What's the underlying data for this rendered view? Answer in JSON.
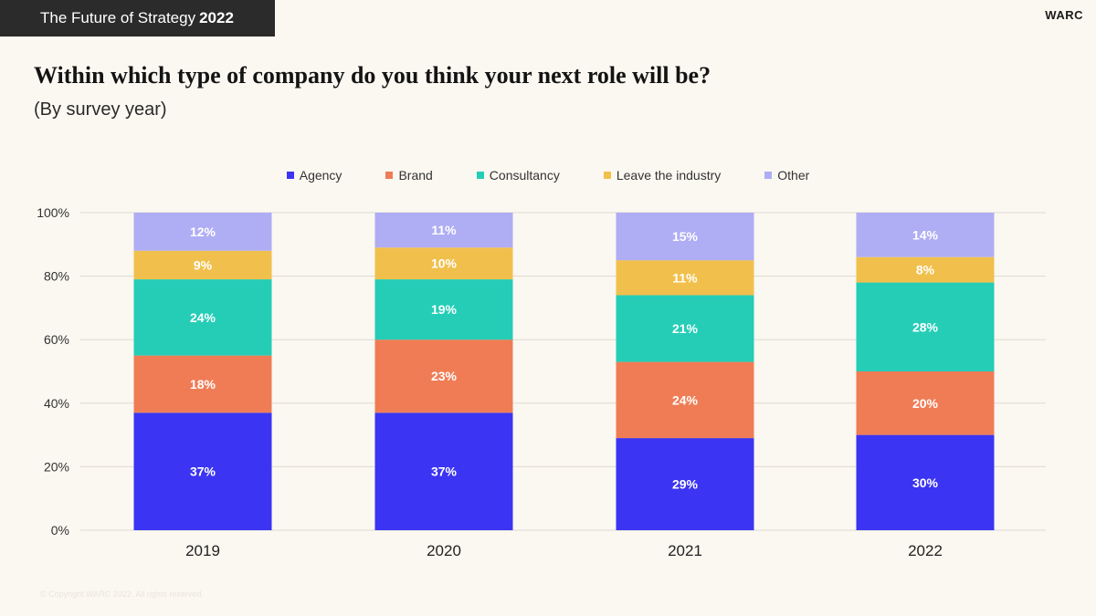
{
  "header": {
    "title": "The Future of Strategy",
    "year": "2022",
    "brand": "WARC"
  },
  "title": "Within which type of company do you think your next role will be?",
  "subtitle": "(By survey year)",
  "footnote": "© Copyright WARC 2022. All rights reserved.",
  "colors": {
    "Agency": "#3b34f2",
    "Brand": "#f07c55",
    "Consultancy": "#25cdb7",
    "Leave the industry": "#f1c04c",
    "Other": "#afadf3"
  },
  "chart_data": {
    "type": "bar",
    "stacked": true,
    "categories": [
      "2019",
      "2020",
      "2021",
      "2022"
    ],
    "series": [
      {
        "name": "Agency",
        "values": [
          37,
          37,
          29,
          30
        ],
        "labels": [
          "37%",
          "37%",
          "29%",
          "30%"
        ]
      },
      {
        "name": "Brand",
        "values": [
          18,
          23,
          24,
          20
        ],
        "labels": [
          "18%",
          "23%",
          "24%",
          "20%"
        ]
      },
      {
        "name": "Consultancy",
        "values": [
          24,
          19,
          21,
          28
        ],
        "labels": [
          "24%",
          "19%",
          "21%",
          "28%"
        ]
      },
      {
        "name": "Leave the industry",
        "values": [
          9,
          10,
          11,
          8
        ],
        "labels": [
          "9%",
          "10%",
          "11%",
          "8%"
        ]
      },
      {
        "name": "Other",
        "values": [
          12,
          11,
          15,
          14
        ],
        "labels": [
          "12%",
          "11%",
          "15%",
          "14%"
        ]
      }
    ],
    "yticks": [
      "0%",
      "20%",
      "40%",
      "60%",
      "80%",
      "100%"
    ],
    "ylim": [
      0,
      100
    ],
    "legend_position": "top-center",
    "grid": true
  }
}
